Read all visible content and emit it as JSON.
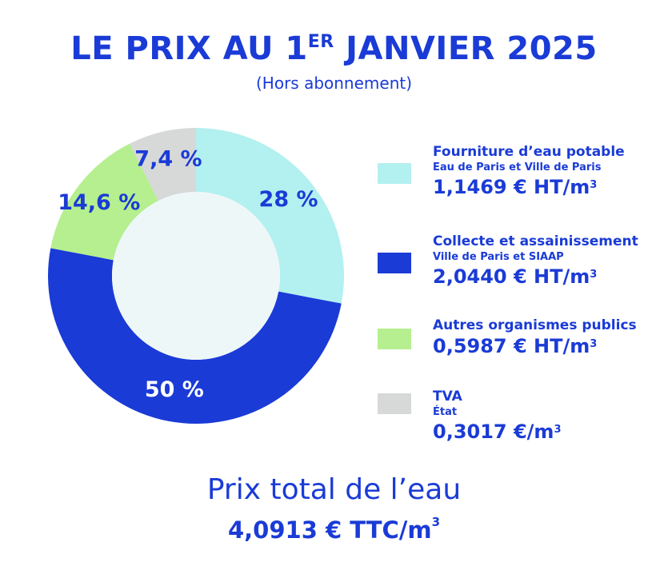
{
  "header": {
    "title_main": "LE PRIX AU 1",
    "title_sup": "ER",
    "title_end": " JANVIER 2025",
    "subtitle": "(Hors abonnement)"
  },
  "chart_data": {
    "type": "pie",
    "subtype": "donut",
    "slices": [
      {
        "label": "28 %",
        "value": 28,
        "color": "#b3f0f0",
        "text_color": "#1a3bd6"
      },
      {
        "label": "50 %",
        "value": 50,
        "color": "#1a3bd6",
        "text_color": "#ffffff"
      },
      {
        "label": "14,6 %",
        "value": 14.6,
        "color": "#b5ef8f",
        "text_color": "#1a3bd6"
      },
      {
        "label": "7,4 %",
        "value": 7.4,
        "color": "#d7d8d8",
        "text_color": "#1a3bd6"
      }
    ],
    "center_color": "#eef7f8",
    "start_angle_deg": 0,
    "direction": "clockwise"
  },
  "legend": [
    {
      "title": "Fourniture d’eau potable",
      "sub": "Eau de Paris et Ville de Paris",
      "price": "1,1469 € HT/m",
      "price_sup": "3",
      "color": "#b3f0f0"
    },
    {
      "title": "Collecte et assainissement",
      "sub": "Ville de Paris et SIAAP",
      "price": "2,0440 € HT/m",
      "price_sup": "3",
      "color": "#1a3bd6"
    },
    {
      "title": "Autres organismes publics",
      "sub": "",
      "price": "0,5987 € HT/m",
      "price_sup": "3",
      "color": "#b5ef8f"
    },
    {
      "title": "TVA",
      "sub": "État",
      "price": "0,3017 €/m",
      "price_sup": "3",
      "color": "#d7d8d8"
    }
  ],
  "total": {
    "label": "Prix total de l’eau",
    "value": "4,0913 € TTC/m",
    "value_sup": "3"
  }
}
